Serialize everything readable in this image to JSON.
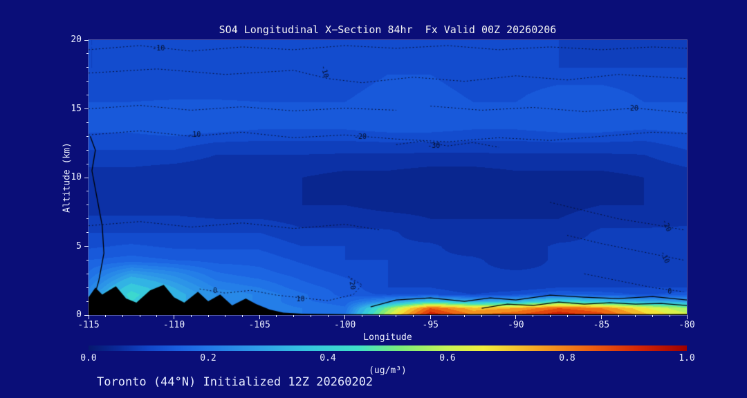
{
  "footer": {
    "caption": "Toronto (44°N) Initialized 12Z 20260202"
  },
  "chart_data": {
    "type": "heatmap",
    "title": "SO4 Longitudinal X−Section 84hr  Fx Valid 00Z 20260206",
    "xlabel": "Longitude",
    "ylabel": "Altitude (km)",
    "xlim": [
      -115,
      -80
    ],
    "ylim": [
      0,
      20
    ],
    "xticks": [
      -115,
      -110,
      -105,
      -100,
      -95,
      -90,
      -85,
      -80
    ],
    "yticks": [
      0,
      5,
      10,
      15,
      20
    ],
    "colorbar": {
      "label": "(ug/m³)",
      "ticks": [
        "0.0",
        "0.2",
        "0.4",
        "0.6",
        "0.8",
        "1.0"
      ],
      "min": 0,
      "max": 1
    },
    "colormap": [
      {
        "v": 0.0,
        "c": "#06186e"
      },
      {
        "v": 0.05,
        "c": "#0a2a9a"
      },
      {
        "v": 0.1,
        "c": "#1146c8"
      },
      {
        "v": 0.15,
        "c": "#1a5fe0"
      },
      {
        "v": 0.2,
        "c": "#2278e8"
      },
      {
        "v": 0.28,
        "c": "#2f9ce8"
      },
      {
        "v": 0.36,
        "c": "#35c4e0"
      },
      {
        "v": 0.45,
        "c": "#3fe0c8"
      },
      {
        "v": 0.52,
        "c": "#7aec7a"
      },
      {
        "v": 0.6,
        "c": "#c8f455"
      },
      {
        "v": 0.66,
        "c": "#f2ee3c"
      },
      {
        "v": 0.75,
        "c": "#f5a623"
      },
      {
        "v": 0.84,
        "c": "#ee5f11"
      },
      {
        "v": 0.92,
        "c": "#d42505"
      },
      {
        "v": 1.0,
        "c": "#9e0000"
      }
    ],
    "grid": {
      "lons": [
        -115,
        -112.5,
        -110,
        -107.5,
        -105,
        -102.5,
        -100,
        -97.5,
        -95,
        -92.5,
        -90,
        -87.5,
        -85,
        -82.5,
        -80
      ],
      "alts": [
        0,
        0.5,
        1,
        1.5,
        2,
        3,
        4,
        5,
        6,
        8,
        10,
        12,
        14,
        16,
        18,
        20
      ],
      "values": [
        [
          0.2,
          0.3,
          0.28,
          0.24,
          0.22,
          0.2,
          0.2,
          0.6,
          0.95,
          0.8,
          0.85,
          0.95,
          0.88,
          0.72,
          0.62
        ],
        [
          0.22,
          0.35,
          0.3,
          0.25,
          0.22,
          0.2,
          0.18,
          0.52,
          0.85,
          0.72,
          0.75,
          0.85,
          0.8,
          0.66,
          0.55
        ],
        [
          0.25,
          0.4,
          0.32,
          0.25,
          0.22,
          0.18,
          0.16,
          0.25,
          0.38,
          0.3,
          0.32,
          0.42,
          0.36,
          0.3,
          0.28
        ],
        [
          0.25,
          0.42,
          0.32,
          0.25,
          0.22,
          0.18,
          0.14,
          0.12,
          0.12,
          0.1,
          0.12,
          0.15,
          0.14,
          0.12,
          0.14
        ],
        [
          0.22,
          0.38,
          0.3,
          0.22,
          0.2,
          0.16,
          0.14,
          0.1,
          0.1,
          0.08,
          0.08,
          0.1,
          0.1,
          0.1,
          0.1
        ],
        [
          0.18,
          0.28,
          0.24,
          0.18,
          0.16,
          0.14,
          0.12,
          0.1,
          0.08,
          0.08,
          0.08,
          0.08,
          0.08,
          0.08,
          0.08
        ],
        [
          0.15,
          0.16,
          0.15,
          0.14,
          0.14,
          0.12,
          0.1,
          0.1,
          0.08,
          0.08,
          0.06,
          0.08,
          0.08,
          0.08,
          0.08
        ],
        [
          0.12,
          0.13,
          0.12,
          0.12,
          0.12,
          0.1,
          0.1,
          0.08,
          0.08,
          0.06,
          0.06,
          0.08,
          0.08,
          0.08,
          0.08
        ],
        [
          0.1,
          0.1,
          0.1,
          0.1,
          0.1,
          0.08,
          0.08,
          0.08,
          0.06,
          0.06,
          0.06,
          0.06,
          0.08,
          0.08,
          0.08
        ],
        [
          0.06,
          0.06,
          0.06,
          0.05,
          0.05,
          0.05,
          0.05,
          0.04,
          0.04,
          0.04,
          0.04,
          0.04,
          0.05,
          0.05,
          0.06
        ],
        [
          0.06,
          0.06,
          0.05,
          0.05,
          0.05,
          0.05,
          0.04,
          0.04,
          0.03,
          0.03,
          0.04,
          0.04,
          0.04,
          0.05,
          0.06
        ],
        [
          0.1,
          0.1,
          0.1,
          0.08,
          0.08,
          0.08,
          0.08,
          0.08,
          0.08,
          0.08,
          0.08,
          0.08,
          0.08,
          0.08,
          0.1
        ],
        [
          0.14,
          0.14,
          0.15,
          0.15,
          0.14,
          0.14,
          0.14,
          0.15,
          0.15,
          0.14,
          0.14,
          0.15,
          0.15,
          0.14,
          0.14
        ],
        [
          0.12,
          0.12,
          0.12,
          0.12,
          0.12,
          0.12,
          0.12,
          0.14,
          0.14,
          0.12,
          0.12,
          0.14,
          0.14,
          0.12,
          0.12
        ],
        [
          0.1,
          0.1,
          0.1,
          0.11,
          0.11,
          0.1,
          0.1,
          0.12,
          0.12,
          0.1,
          0.1,
          0.1,
          0.1,
          0.1,
          0.1
        ],
        [
          0.1,
          0.1,
          0.1,
          0.1,
          0.1,
          0.1,
          0.1,
          0.12,
          0.12,
          0.1,
          0.1,
          0.1,
          0.08,
          0.08,
          0.08
        ]
      ]
    },
    "terrain": [
      [
        -115,
        1.3
      ],
      [
        -114.6,
        2.0
      ],
      [
        -114.2,
        1.5
      ],
      [
        -113.4,
        2.1
      ],
      [
        -112.8,
        1.2
      ],
      [
        -112.2,
        0.9
      ],
      [
        -111.4,
        1.8
      ],
      [
        -110.6,
        2.2
      ],
      [
        -110.0,
        1.3
      ],
      [
        -109.4,
        0.9
      ],
      [
        -108.6,
        1.7
      ],
      [
        -108.0,
        1.0
      ],
      [
        -107.3,
        1.5
      ],
      [
        -106.6,
        0.7
      ],
      [
        -105.8,
        1.2
      ],
      [
        -105.2,
        0.8
      ],
      [
        -104.4,
        0.4
      ],
      [
        -103.6,
        0.18
      ],
      [
        -102.5,
        0.1
      ],
      [
        -100,
        0.06
      ],
      [
        -97,
        0.05
      ],
      [
        -94,
        0.06
      ],
      [
        -91,
        0.08
      ],
      [
        -88,
        0.06
      ],
      [
        -85,
        0.08
      ],
      [
        -82,
        0.06
      ],
      [
        -80,
        0.08
      ]
    ],
    "solid_contours": [
      [
        [
          -114.9,
          0.3
        ],
        [
          -114.4,
          2.5
        ],
        [
          -114.1,
          4.5
        ],
        [
          -114.2,
          6.5
        ],
        [
          -114.5,
          8.5
        ],
        [
          -114.8,
          10.5
        ],
        [
          -114.6,
          12.0
        ],
        [
          -114.9,
          13.0
        ]
      ],
      [
        [
          -98.5,
          0.6
        ],
        [
          -97,
          1.1
        ],
        [
          -95,
          1.25
        ],
        [
          -93,
          1.0
        ],
        [
          -91.5,
          1.25
        ],
        [
          -90,
          1.1
        ],
        [
          -88,
          1.45
        ],
        [
          -86,
          1.3
        ],
        [
          -84,
          1.2
        ],
        [
          -82,
          1.35
        ],
        [
          -80,
          1.1
        ]
      ],
      [
        [
          -92,
          0.5
        ],
        [
          -90.5,
          0.8
        ],
        [
          -89,
          0.7
        ],
        [
          -87.5,
          0.95
        ],
        [
          -86,
          0.8
        ],
        [
          -84.5,
          0.9
        ],
        [
          -83,
          0.8
        ],
        [
          -81.5,
          0.85
        ],
        [
          -80,
          0.7
        ]
      ]
    ],
    "dotted_contours": [
      [
        [
          -115,
          19.3
        ],
        [
          -112,
          19.6
        ],
        [
          -109,
          19.2
        ],
        [
          -106,
          19.5
        ],
        [
          -103,
          19.3
        ],
        [
          -100,
          19.6
        ],
        [
          -97,
          19.4
        ],
        [
          -94,
          19.6
        ],
        [
          -91,
          19.3
        ],
        [
          -88,
          19.5
        ],
        [
          -85,
          19.3
        ],
        [
          -82,
          19.5
        ],
        [
          -80,
          19.4
        ]
      ],
      [
        [
          -115,
          17.6
        ],
        [
          -111,
          17.9
        ],
        [
          -107,
          17.5
        ],
        [
          -103,
          17.8
        ],
        [
          -101,
          17.2
        ],
        [
          -99,
          16.9
        ],
        [
          -96,
          17.3
        ],
        [
          -93,
          17.0
        ],
        [
          -90,
          17.4
        ],
        [
          -87,
          17.1
        ],
        [
          -84,
          17.5
        ],
        [
          -80,
          17.2
        ]
      ],
      [
        [
          -115,
          13.1
        ],
        [
          -112,
          13.4
        ],
        [
          -109,
          13.0
        ],
        [
          -106,
          13.3
        ],
        [
          -103,
          12.9
        ],
        [
          -100,
          13.1
        ],
        [
          -97,
          12.8
        ],
        [
          -94,
          12.6
        ],
        [
          -91,
          12.9
        ],
        [
          -88,
          12.7
        ],
        [
          -85,
          13.0
        ],
        [
          -82,
          13.3
        ],
        [
          -80,
          13.2
        ]
      ],
      [
        [
          -97,
          12.4
        ],
        [
          -95.5,
          12.65
        ],
        [
          -94,
          12.3
        ],
        [
          -92.5,
          12.55
        ],
        [
          -91,
          12.2
        ]
      ],
      [
        [
          -95,
          15.2
        ],
        [
          -92,
          14.9
        ],
        [
          -89,
          15.1
        ],
        [
          -86,
          14.8
        ],
        [
          -83,
          15.05
        ],
        [
          -80,
          14.7
        ]
      ],
      [
        [
          -115,
          15.0
        ],
        [
          -112,
          15.25
        ],
        [
          -109,
          14.9
        ],
        [
          -106,
          15.15
        ],
        [
          -103,
          14.85
        ],
        [
          -100,
          15.05
        ],
        [
          -97,
          14.9
        ]
      ],
      [
        [
          -88,
          8.2
        ],
        [
          -86,
          7.6
        ],
        [
          -84,
          7.0
        ],
        [
          -82,
          6.6
        ],
        [
          -80.2,
          6.2
        ]
      ],
      [
        [
          -87,
          5.8
        ],
        [
          -85,
          5.2
        ],
        [
          -83,
          4.7
        ],
        [
          -81,
          4.2
        ],
        [
          -80.2,
          4.0
        ]
      ],
      [
        [
          -86,
          3.0
        ],
        [
          -84,
          2.5
        ],
        [
          -82,
          2.0
        ],
        [
          -80.2,
          1.7
        ]
      ],
      [
        [
          -108.5,
          1.9
        ],
        [
          -107,
          1.6
        ],
        [
          -105.5,
          1.8
        ],
        [
          -104,
          1.45
        ],
        [
          -102.5,
          1.25
        ],
        [
          -101,
          1.05
        ],
        [
          -99.5,
          1.5
        ],
        [
          -99,
          2.2
        ],
        [
          -99.8,
          2.8
        ]
      ],
      [
        [
          -115,
          6.5
        ],
        [
          -112,
          6.8
        ],
        [
          -109,
          6.4
        ],
        [
          -106,
          6.7
        ],
        [
          -103,
          6.3
        ],
        [
          -100,
          6.6
        ],
        [
          -98,
          6.2
        ]
      ]
    ],
    "contour_labels": [
      {
        "text": "-10",
        "lon": -110.9,
        "alt": 19.4,
        "rot": 0
      },
      {
        "text": "-10",
        "lon": -101.2,
        "alt": 17.7,
        "rot": 75
      },
      {
        "text": "-10",
        "lon": -108.8,
        "alt": 13.1,
        "rot": 0
      },
      {
        "text": "-20",
        "lon": -99.1,
        "alt": 12.95,
        "rot": 0
      },
      {
        "text": "-30",
        "lon": -94.8,
        "alt": 12.3,
        "rot": 0
      },
      {
        "text": "-20",
        "lon": -83.2,
        "alt": 15.0,
        "rot": 0
      },
      {
        "text": "-20",
        "lon": -81.2,
        "alt": 6.5,
        "rot": 65
      },
      {
        "text": "-10",
        "lon": -81.3,
        "alt": 4.2,
        "rot": 65
      },
      {
        "text": "0",
        "lon": -81.0,
        "alt": 1.7,
        "rot": 0
      },
      {
        "text": "0",
        "lon": -107.6,
        "alt": 1.75,
        "rot": 0
      },
      {
        "text": "10",
        "lon": -102.6,
        "alt": 1.15,
        "rot": 0
      },
      {
        "text": "-20",
        "lon": -99.6,
        "alt": 2.3,
        "rot": 80
      }
    ]
  }
}
